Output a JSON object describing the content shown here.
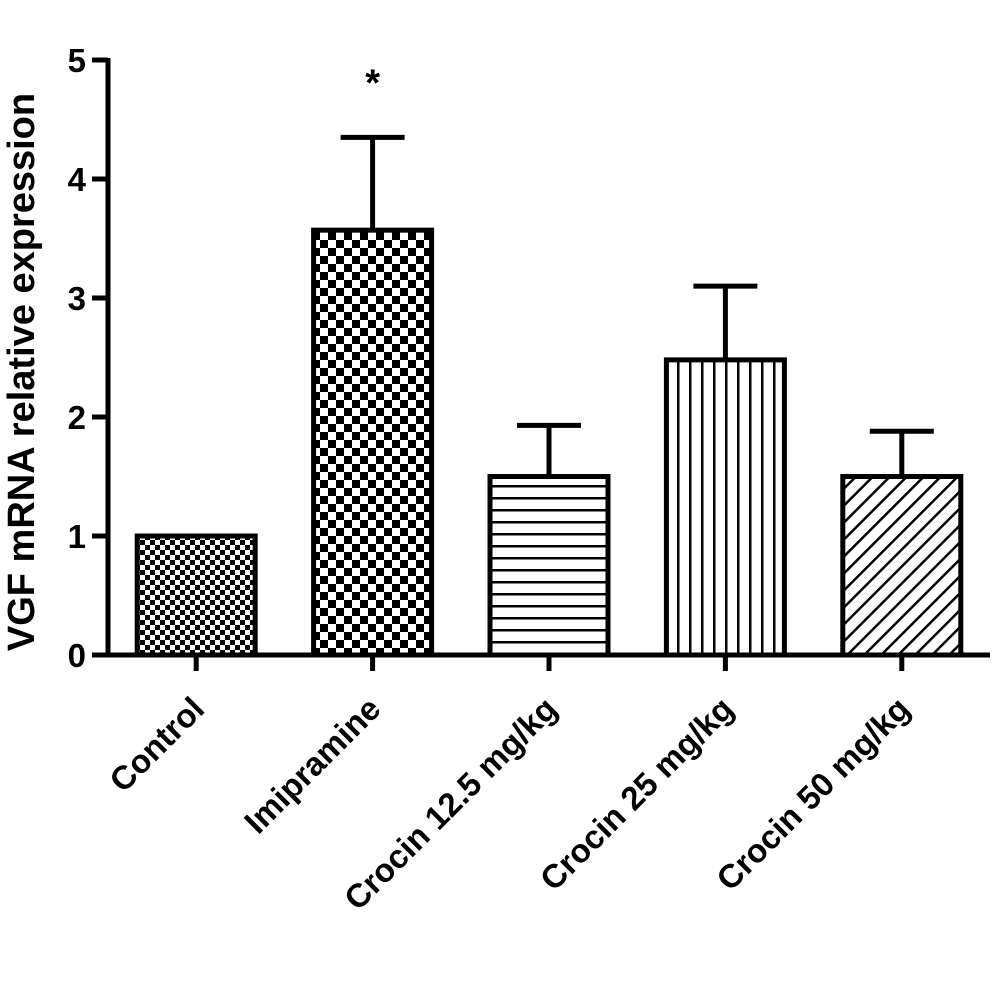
{
  "chart_data": {
    "type": "bar",
    "title": "",
    "xlabel": "",
    "ylabel": "VGF mRNA relative expression",
    "ylim": [
      0,
      5
    ],
    "yticks": [
      "0",
      "1",
      "2",
      "3",
      "4",
      "5"
    ],
    "categories": [
      "Control",
      "Imipramine",
      "Crocin 12.5 mg/kg",
      "Crocin 25 mg/kg",
      "Crocin 50 mg/kg"
    ],
    "values": [
      1.0,
      3.57,
      1.5,
      2.48,
      1.5
    ],
    "errors": [
      0.0,
      0.78,
      0.43,
      0.62,
      0.38
    ],
    "patterns": [
      "fine-checker",
      "checker",
      "horizontal-lines",
      "vertical-lines",
      "diagonal-lines"
    ],
    "annotations": [
      "",
      "*",
      "",
      "",
      ""
    ],
    "grid": false,
    "colors": {
      "bar_fill": "#ffffff",
      "bar_pattern": "#000000",
      "axis": "#000000"
    }
  }
}
